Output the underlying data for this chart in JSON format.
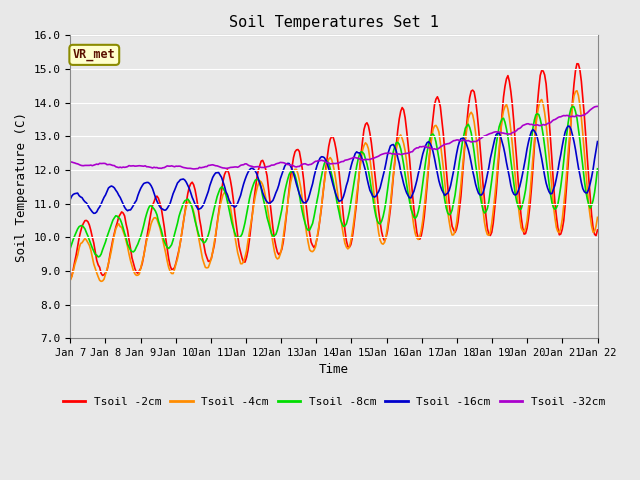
{
  "title": "Soil Temperatures Set 1",
  "xlabel": "Time",
  "ylabel": "Soil Temperature (C)",
  "ylim": [
    7.0,
    16.0
  ],
  "yticks": [
    7.0,
    8.0,
    9.0,
    10.0,
    11.0,
    12.0,
    13.0,
    14.0,
    15.0,
    16.0
  ],
  "x_labels": [
    "Jan 7",
    "Jan 8",
    "Jan 9",
    "Jan 10",
    "Jan 11",
    "Jan 12",
    "Jan 13",
    "Jan 14",
    "Jan 15",
    "Jan 16",
    "Jan 17",
    "Jan 18",
    "Jan 19",
    "Jan 20",
    "Jan 21",
    "Jan 22"
  ],
  "legend_labels": [
    "Tsoil -2cm",
    "Tsoil -4cm",
    "Tsoil -8cm",
    "Tsoil -16cm",
    "Tsoil -32cm"
  ],
  "legend_colors": [
    "#FF0000",
    "#FF8C00",
    "#00DD00",
    "#0000CC",
    "#AA00CC"
  ],
  "bg_color": "#E8E8E8",
  "grid_color": "#FFFFFF",
  "annotation_text": "VR_met",
  "annotation_bg": "#FFFFCC",
  "annotation_border": "#8B8B00",
  "n_points": 360,
  "n_days": 15
}
